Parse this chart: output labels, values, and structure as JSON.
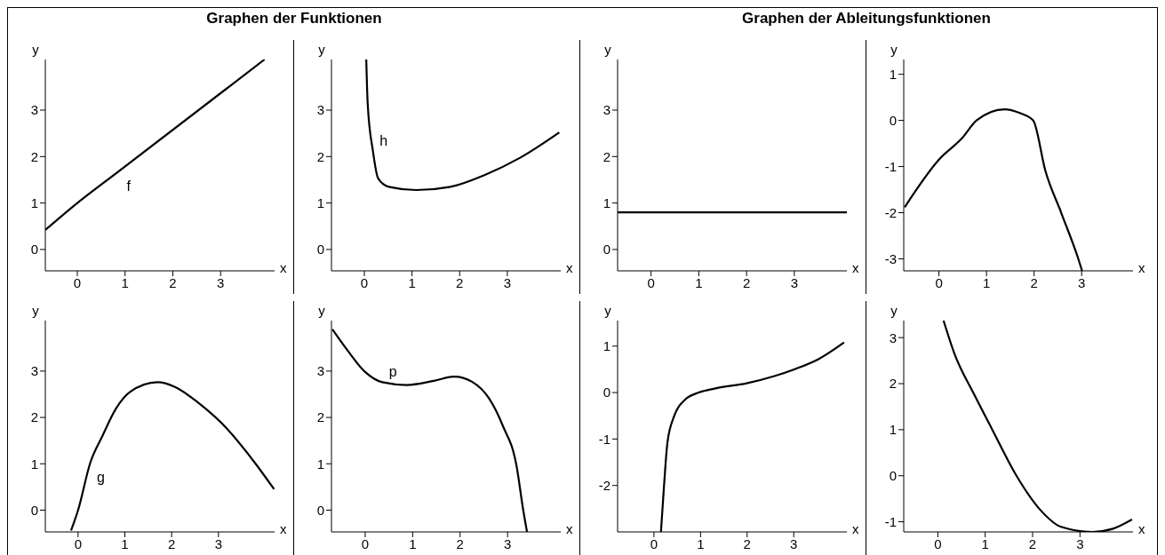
{
  "chart_data": [
    {
      "type": "line",
      "title": "Graphen der Funktionen",
      "xlabel": "x",
      "ylabel": "y",
      "xlim": [
        -0.67,
        4.13
      ],
      "ylim": [
        -0.46,
        4.09
      ],
      "xticks": [
        0,
        1,
        2,
        3
      ],
      "yticks": [
        0,
        1,
        2,
        3
      ],
      "annotations": [
        {
          "text": "f",
          "x": 0.85,
          "y": 1.67
        }
      ],
      "series": [
        {
          "color": "#000000",
          "x": [
            -0.67,
            0,
            0.85,
            3.92
          ],
          "values": [
            0.42,
            1.0,
            1.67,
            4.09
          ]
        }
      ]
    },
    {
      "type": "line",
      "xlabel": "x",
      "ylabel": "y",
      "xlim": [
        -0.69,
        4.12
      ],
      "ylim": [
        -0.46,
        4.09
      ],
      "xticks": [
        0,
        1,
        2,
        3
      ],
      "yticks": [
        0,
        1,
        2,
        3
      ],
      "annotations": [
        {
          "text": "h",
          "x": 0.18,
          "y": 2.12
        }
      ],
      "series": [
        {
          "color": "#000000",
          "x": [
            0.04,
            0.07,
            0.18,
            0.29,
            0.51,
            1.09,
            1.81,
            2.54,
            3.26,
            4.09
          ],
          "values": [
            4.09,
            3.14,
            2.12,
            1.53,
            1.35,
            1.28,
            1.35,
            1.61,
            1.97,
            2.52
          ]
        }
      ]
    },
    {
      "type": "line",
      "title": "Graphen der Ableitungsfunktionen",
      "xlabel": "x",
      "ylabel": "y",
      "xlim": [
        -0.7,
        4.1
      ],
      "ylim": [
        -0.46,
        4.09
      ],
      "xticks": [
        0,
        1,
        2,
        3
      ],
      "yticks": [
        0,
        1,
        2,
        3
      ],
      "series": [
        {
          "color": "#000000",
          "x": [
            -0.7,
            4.1
          ],
          "values": [
            0.8,
            0.8
          ]
        }
      ]
    },
    {
      "type": "line",
      "xlabel": "x",
      "ylabel": "y",
      "xlim": [
        -0.74,
        4.08
      ],
      "ylim": [
        -3.26,
        1.32
      ],
      "xticks": [
        0,
        1,
        2,
        3
      ],
      "yticks": [
        -3,
        -2,
        -1,
        0,
        1
      ],
      "series": [
        {
          "color": "#000000",
          "x": [
            -0.72,
            0,
            0.5,
            0.79,
            1.38,
            1.7,
            1.98,
            2.24,
            2.57,
            2.93,
            3.01
          ],
          "values": [
            -1.88,
            -0.85,
            -0.37,
            0,
            0.24,
            0.16,
            0,
            -1.1,
            -2,
            -3,
            -3.26
          ]
        }
      ]
    },
    {
      "type": "line",
      "xlabel": "x",
      "ylabel": "y",
      "xlim": [
        -0.7,
        4.2
      ],
      "ylim": [
        -0.47,
        4.09
      ],
      "xticks": [
        0,
        1,
        2,
        3
      ],
      "yticks": [
        0,
        1,
        2,
        3
      ],
      "annotations": [
        {
          "text": "g",
          "x": 0.26,
          "y": 1.02
        }
      ],
      "series": [
        {
          "color": "#000000",
          "x": [
            -0.15,
            0,
            0.26,
            0.52,
            0.81,
            1.11,
            1.7,
            2.07,
            2.59,
            3.19,
            3.78,
            4.19
          ],
          "values": [
            -0.44,
            0,
            1.02,
            1.6,
            2.19,
            2.55,
            2.76,
            2.66,
            2.3,
            1.75,
            1.02,
            0.45
          ]
        }
      ]
    },
    {
      "type": "line",
      "xlabel": "x",
      "ylabel": "y",
      "xlim": [
        -0.71,
        4.12
      ],
      "ylim": [
        -0.47,
        4.09
      ],
      "xticks": [
        0,
        1,
        2,
        3
      ],
      "yticks": [
        0,
        1,
        2,
        3
      ],
      "annotations": [
        {
          "text": "p",
          "x": 0.36,
          "y": 2.76
        }
      ],
      "series": [
        {
          "color": "#000000",
          "x": [
            -0.69,
            -0.36,
            0,
            0.36,
            0.87,
            1.45,
            1.88,
            2.25,
            2.61,
            2.9,
            3.19,
            3.33,
            3.41
          ],
          "values": [
            3.9,
            3.43,
            2.98,
            2.76,
            2.7,
            2.79,
            2.88,
            2.77,
            2.41,
            1.82,
            0.95,
            0,
            -0.47
          ]
        }
      ]
    },
    {
      "type": "line",
      "xlabel": "x",
      "ylabel": "y",
      "xlim": [
        -0.78,
        4.14
      ],
      "ylim": [
        -3.0,
        1.55
      ],
      "xticks": [
        0,
        1,
        2,
        3
      ],
      "yticks": [
        -2,
        -1,
        0,
        1
      ],
      "series": [
        {
          "color": "#000000",
          "x": [
            0.15,
            0.22,
            0.29,
            0.44,
            0.66,
            0.96,
            1.32,
            1.99,
            2.57,
            3.01,
            3.53,
            4.08
          ],
          "values": [
            -3.0,
            -1.95,
            -1.07,
            -0.49,
            -0.16,
            0,
            0.09,
            0.2,
            0.35,
            0.5,
            0.72,
            1.08
          ]
        }
      ]
    },
    {
      "type": "line",
      "xlabel": "x",
      "ylabel": "y",
      "xlim": [
        -0.72,
        4.12
      ],
      "ylim": [
        -1.22,
        3.37
      ],
      "xticks": [
        0,
        1,
        2,
        3
      ],
      "yticks": [
        -1,
        0,
        1,
        2,
        3
      ],
      "series": [
        {
          "color": "#000000",
          "x": [
            0.12,
            0.34,
            0.78,
            1.15,
            1.66,
            2.17,
            2.6,
            3.26,
            3.7,
            4.1
          ],
          "values": [
            3.37,
            2.68,
            1.74,
            1.0,
            0,
            -0.75,
            -1.11,
            -1.22,
            -1.15,
            -0.95
          ]
        }
      ]
    }
  ]
}
